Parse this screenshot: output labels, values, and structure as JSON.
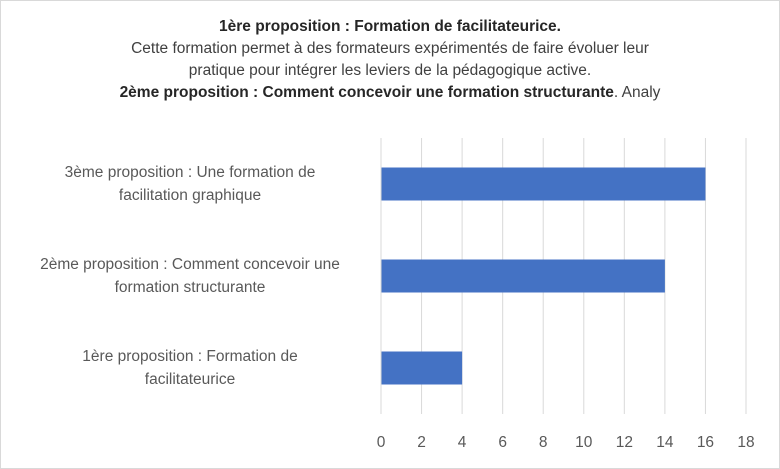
{
  "chart_data": {
    "type": "bar",
    "orientation": "horizontal",
    "title_lines": [
      {
        "segments": [
          {
            "text": "1ère proposition : Formation de facilitateurice.",
            "bold": true
          }
        ]
      },
      {
        "segments": [
          {
            "text": "Cette formation permet à des formateurs expérimentés de faire évoluer leur",
            "bold": false
          }
        ]
      },
      {
        "segments": [
          {
            "text": "pratique pour intégrer les leviers de la pédagogique active.",
            "bold": false
          }
        ]
      },
      {
        "segments": [
          {
            "text": "2ème proposition : Comment concevoir une formation structurante",
            "bold": true
          },
          {
            "text": ". Analy",
            "bold": false
          }
        ]
      }
    ],
    "categories": [
      [
        "3ème proposition : Une formation de",
        "facilitation graphique"
      ],
      [
        "2ème proposition : Comment concevoir une",
        "formation structurante"
      ],
      [
        "1ère proposition : Formation de",
        "facilitateurice"
      ]
    ],
    "values": [
      16,
      14,
      4
    ],
    "xlim": [
      0,
      18
    ],
    "xticks": [
      0,
      2,
      4,
      6,
      8,
      10,
      12,
      14,
      16,
      18
    ],
    "grid": true,
    "bar_color": "#4472C4",
    "grid_color": "#d9d9d9"
  }
}
